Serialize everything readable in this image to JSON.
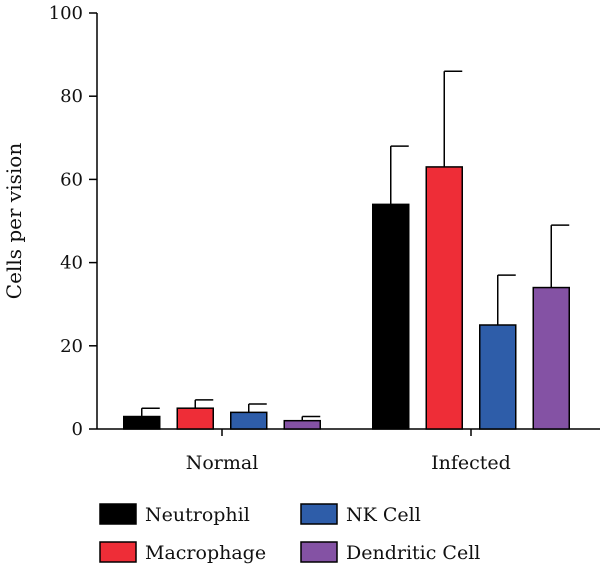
{
  "chart_data": {
    "type": "bar",
    "ylabel": "Cells per vision",
    "ylim": [
      0,
      100
    ],
    "yticks": [
      0,
      20,
      40,
      60,
      80,
      100
    ],
    "categories": [
      "Normal",
      "Infected"
    ],
    "series": [
      {
        "name": "Neutrophil",
        "color": "#000000",
        "values": [
          3,
          54
        ],
        "errors": [
          2,
          14
        ]
      },
      {
        "name": "Macrophage",
        "color": "#ee2d37",
        "values": [
          5,
          63
        ],
        "errors": [
          2,
          23
        ]
      },
      {
        "name": "NK Cell",
        "color": "#2e5da9",
        "values": [
          4,
          25
        ],
        "errors": [
          2,
          12
        ]
      },
      {
        "name": "Dendritic Cell",
        "color": "#8452a4",
        "values": [
          2,
          34
        ],
        "errors": [
          1,
          15
        ]
      }
    ],
    "legend_position": "bottom",
    "grid": false
  }
}
